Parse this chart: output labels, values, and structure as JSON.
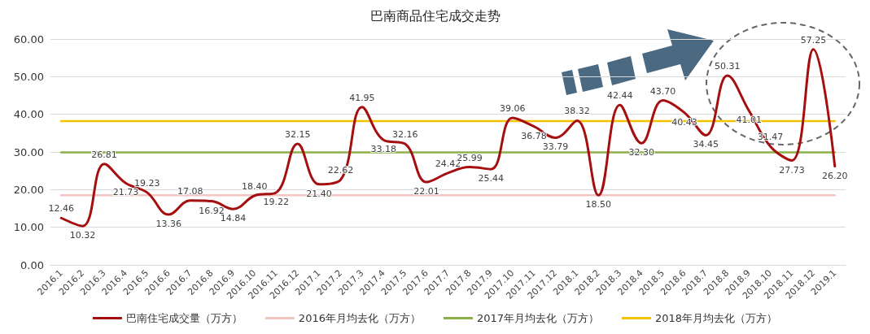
{
  "chart_data": {
    "type": "line",
    "title": "巴南商品住宅成交走势",
    "categories": [
      "2016.1",
      "2016.2",
      "2016.3",
      "2016.4",
      "2016.5",
      "2016.6",
      "2016.7",
      "2016.8",
      "2016.9",
      "2016.10",
      "2016.11",
      "2016.12",
      "2017.1",
      "2017.2",
      "2017.3",
      "2017.4",
      "2017.5",
      "2017.6",
      "2017.7",
      "2017.8",
      "2017.9",
      "2017.10",
      "2017.11",
      "2017.12",
      "2018.1",
      "2018.2",
      "2018.3",
      "2018.4",
      "2018.5",
      "2018.6",
      "2018.7",
      "2018.8",
      "2018.9",
      "2018.10",
      "2018.11",
      "2018.12",
      "2019.1"
    ],
    "series": [
      {
        "name": "巴南住宅成交量（万方）",
        "color": "#a50f0f",
        "values": [
          12.46,
          10.32,
          26.81,
          21.73,
          19.23,
          13.36,
          17.08,
          16.92,
          14.84,
          18.4,
          19.22,
          32.15,
          21.4,
          22.62,
          41.95,
          33.18,
          32.16,
          22.01,
          24.42,
          25.99,
          25.44,
          39.06,
          36.78,
          33.79,
          38.32,
          18.5,
          42.44,
          32.3,
          43.7,
          40.43,
          34.45,
          50.31,
          41.01,
          31.47,
          27.73,
          57.25,
          26.2
        ],
        "value_labels": [
          "12.46",
          "10.32",
          "26.81",
          "21.73",
          "19.23",
          "13.36",
          "17.08",
          "16.92",
          "14.84",
          "18.40",
          "19.22",
          "32.15",
          "21.40",
          "22.62",
          "41.95",
          "33.18",
          "32.16",
          "22.01",
          "24.42",
          "25.99",
          "25.44",
          "39.06",
          "36.78",
          "33.79",
          "38.32",
          "18.50",
          "42.44",
          "32.30",
          "43.70",
          "40.43",
          "34.45",
          "50.31",
          "41.01",
          "31.47",
          "27.73",
          "57.25",
          "26.20"
        ]
      },
      {
        "name": "2016年月均去化（万方）",
        "color": "#f2c4c2",
        "values": [
          18.5,
          18.5,
          18.5,
          18.5,
          18.5,
          18.5,
          18.5,
          18.5,
          18.5,
          18.5,
          18.5,
          18.5,
          18.5,
          18.5,
          18.5,
          18.5,
          18.5,
          18.5,
          18.5,
          18.5,
          18.5,
          18.5,
          18.5,
          18.5,
          18.5,
          18.5,
          18.5,
          18.5,
          18.5,
          18.5,
          18.5,
          18.5,
          18.5,
          18.5,
          18.5,
          18.5,
          18.5
        ]
      },
      {
        "name": "2017年月均去化（万方）",
        "color": "#8db04a",
        "values": [
          29.9,
          29.9,
          29.9,
          29.9,
          29.9,
          29.9,
          29.9,
          29.9,
          29.9,
          29.9,
          29.9,
          29.9,
          29.9,
          29.9,
          29.9,
          29.9,
          29.9,
          29.9,
          29.9,
          29.9,
          29.9,
          29.9,
          29.9,
          29.9,
          29.9,
          29.9,
          29.9,
          29.9,
          29.9,
          29.9,
          29.9,
          29.9,
          29.9,
          29.9,
          29.9,
          29.9,
          29.9
        ]
      },
      {
        "name": "2018年月均去化（万方）",
        "color": "#f5c200",
        "values": [
          38.2,
          38.2,
          38.2,
          38.2,
          38.2,
          38.2,
          38.2,
          38.2,
          38.2,
          38.2,
          38.2,
          38.2,
          38.2,
          38.2,
          38.2,
          38.2,
          38.2,
          38.2,
          38.2,
          38.2,
          38.2,
          38.2,
          38.2,
          38.2,
          38.2,
          38.2,
          38.2,
          38.2,
          38.2,
          38.2,
          38.2,
          38.2,
          38.2,
          38.2,
          38.2,
          38.2,
          38.2
        ]
      }
    ],
    "ylim": [
      0,
      60
    ],
    "yticks": [
      {
        "value": 0,
        "label": "0.00"
      },
      {
        "value": 10,
        "label": "10.00"
      },
      {
        "value": 20,
        "label": "20.00"
      },
      {
        "value": 30,
        "label": "30.00"
      },
      {
        "value": 40,
        "label": "40.00"
      },
      {
        "value": 50,
        "label": "50.00"
      },
      {
        "value": 60,
        "label": "60.00"
      }
    ],
    "grid": "y",
    "legend": "bottom",
    "marker": "none",
    "line_style": "solid"
  }
}
